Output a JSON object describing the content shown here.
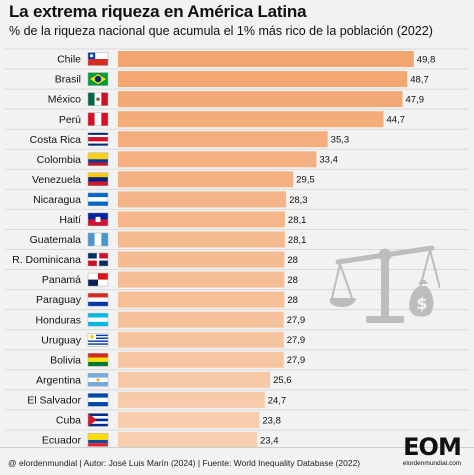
{
  "title": "La extrema riqueza en América Latina",
  "subtitle": "% de la riqueza nacional que acumula el 1% más rico de la población (2022)",
  "footer": "@ elordenmundial   |   Autor: José Luis Marín  (2024)  |  Fuente: World Inequality Database (2022)",
  "logo": {
    "mark": "EOM",
    "sub": "elordenmundial.com"
  },
  "colors": {
    "bar_top": "#f3a56f",
    "bar_bottom": "#f7cfb0",
    "icon": "#bdbdbd",
    "background": "#f2f2f2"
  },
  "icons": [
    "scale-of-justice-icon",
    "money-bag-icon"
  ],
  "chart_data": {
    "type": "bar",
    "orientation": "horizontal",
    "title": "La extrema riqueza en América Latina",
    "subtitle": "% de la riqueza nacional que acumula el 1% más rico de la población (2022)",
    "categories": [
      "Chile",
      "Brasil",
      "México",
      "Perú",
      "Costa Rica",
      "Colombia",
      "Venezuela",
      "Nicaragua",
      "Haití",
      "Guatemala",
      "R. Dominicana",
      "Panamá",
      "Paraguay",
      "Honduras",
      "Uruguay",
      "Bolivia",
      "Argentina",
      "El Salvador",
      "Cuba",
      "Ecuador"
    ],
    "values": [
      49.8,
      48.7,
      47.9,
      44.7,
      35.3,
      33.4,
      29.5,
      28.3,
      28.1,
      28.1,
      28,
      28,
      28,
      27.9,
      27.9,
      27.9,
      25.6,
      24.7,
      23.8,
      23.4
    ],
    "value_labels": [
      "49,8",
      "48,7",
      "47,9",
      "44,7",
      "35,3",
      "33,4",
      "29,5",
      "28,3",
      "28,1",
      "28,1",
      "28",
      "28",
      "28",
      "27,9",
      "27,9",
      "27,9",
      "25,6",
      "24,7",
      "23,8",
      "23,4"
    ],
    "xlim": [
      0,
      50
    ],
    "grid": false,
    "legend": "none",
    "flags": [
      "chile-flag-icon",
      "brazil-flag-icon",
      "mexico-flag-icon",
      "peru-flag-icon",
      "costa-rica-flag-icon",
      "colombia-flag-icon",
      "venezuela-flag-icon",
      "nicaragua-flag-icon",
      "haiti-flag-icon",
      "guatemala-flag-icon",
      "dominican-republic-flag-icon",
      "panama-flag-icon",
      "paraguay-flag-icon",
      "honduras-flag-icon",
      "uruguay-flag-icon",
      "bolivia-flag-icon",
      "argentina-flag-icon",
      "el-salvador-flag-icon",
      "cuba-flag-icon",
      "ecuador-flag-icon"
    ]
  }
}
